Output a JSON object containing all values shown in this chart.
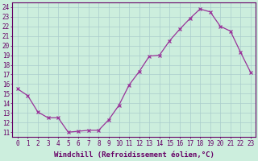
{
  "x": [
    0,
    1,
    2,
    3,
    4,
    5,
    6,
    7,
    8,
    9,
    10,
    11,
    12,
    13,
    14,
    15,
    16,
    17,
    18,
    19,
    20,
    21,
    22,
    23
  ],
  "y": [
    15.5,
    14.8,
    13.1,
    12.5,
    12.5,
    11.0,
    11.1,
    11.2,
    11.2,
    12.3,
    13.8,
    15.9,
    17.3,
    18.9,
    19.0,
    20.5,
    21.7,
    22.8,
    23.8,
    23.5,
    22.0,
    21.5,
    19.3,
    17.2
  ],
  "line_color": "#993399",
  "marker": "x",
  "marker_size": 3,
  "bg_color": "#cceedd",
  "grid_color": "#aacccc",
  "xlabel": "Windchill (Refroidissement éolien,°C)",
  "xlim": [
    -0.5,
    23.5
  ],
  "ylim": [
    10.5,
    24.5
  ],
  "yticks": [
    11,
    12,
    13,
    14,
    15,
    16,
    17,
    18,
    19,
    20,
    21,
    22,
    23,
    24
  ],
  "xticks": [
    0,
    1,
    2,
    3,
    4,
    5,
    6,
    7,
    8,
    9,
    10,
    11,
    12,
    13,
    14,
    15,
    16,
    17,
    18,
    19,
    20,
    21,
    22,
    23
  ],
  "tick_fontsize": 5.5,
  "label_fontsize": 6.5,
  "label_color": "#660066",
  "tick_color": "#660066",
  "spine_color": "#660066"
}
